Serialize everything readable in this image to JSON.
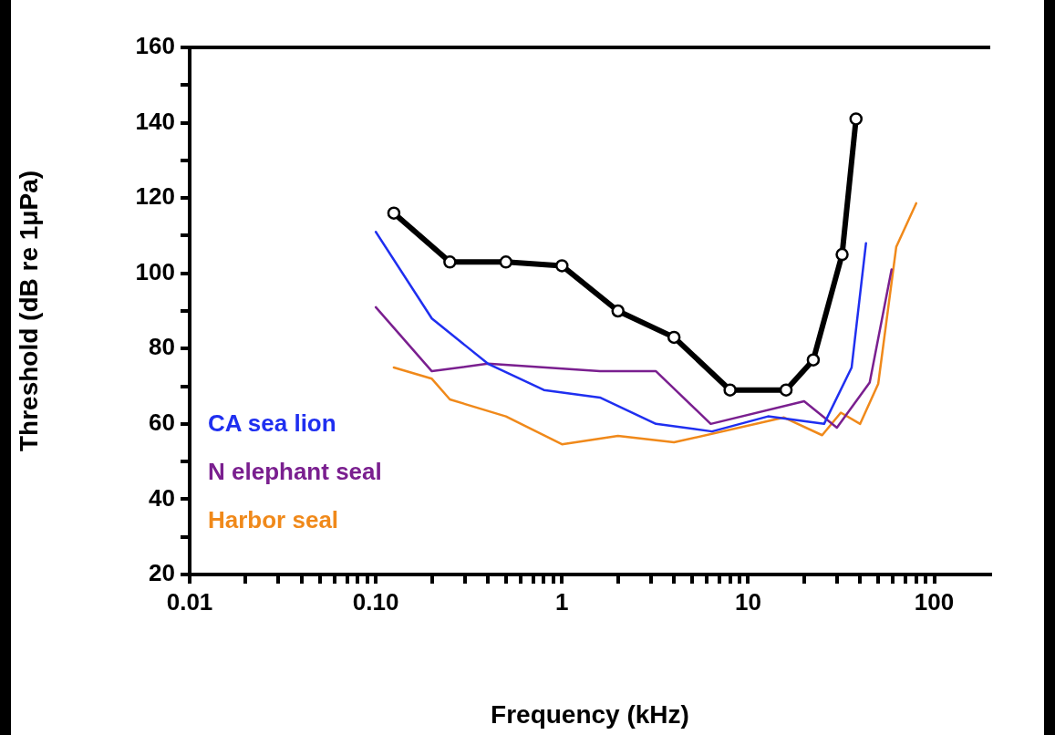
{
  "chart_data": {
    "type": "line",
    "xlabel": "Frequency (kHz)",
    "ylabel": "Threshold (dB re 1μPa)",
    "log": "x",
    "grid": false,
    "legend": "bottom left",
    "xlim": [
      0.01,
      200
    ],
    "ylim": [
      20,
      160
    ],
    "xticks": [
      {
        "value": 0.01,
        "label": "0.01"
      },
      {
        "value": 0.02,
        "label": null
      },
      {
        "value": 0.03,
        "label": null
      },
      {
        "value": 0.04,
        "label": null
      },
      {
        "value": 0.05,
        "label": null
      },
      {
        "value": 0.06,
        "label": null
      },
      {
        "value": 0.07,
        "label": null
      },
      {
        "value": 0.08,
        "label": null
      },
      {
        "value": 0.09,
        "label": null
      },
      {
        "value": 0.1,
        "label": "0.10"
      },
      {
        "value": 0.2,
        "label": null
      },
      {
        "value": 0.3,
        "label": null
      },
      {
        "value": 0.4,
        "label": null
      },
      {
        "value": 0.5,
        "label": null
      },
      {
        "value": 0.6,
        "label": null
      },
      {
        "value": 0.7,
        "label": null
      },
      {
        "value": 0.8,
        "label": null
      },
      {
        "value": 0.9,
        "label": null
      },
      1,
      {
        "value": 2,
        "label": null
      },
      {
        "value": 3,
        "label": null
      },
      {
        "value": 4,
        "label": null
      },
      {
        "value": 5,
        "label": null
      },
      {
        "value": 6,
        "label": null
      },
      {
        "value": 7,
        "label": null
      },
      {
        "value": 8,
        "label": null
      },
      {
        "value": 9,
        "label": null
      },
      10,
      {
        "value": 20,
        "label": null
      },
      {
        "value": 30,
        "label": null
      },
      {
        "value": 40,
        "label": null
      },
      {
        "value": 50,
        "label": null
      },
      {
        "value": 60,
        "label": null
      },
      {
        "value": 70,
        "label": null
      },
      {
        "value": 80,
        "label": null
      },
      {
        "value": 90,
        "label": null
      },
      100
    ],
    "yticks": [
      20,
      {
        "value": 30,
        "label": null
      },
      40,
      {
        "value": 50,
        "label": null
      },
      60,
      {
        "value": 70,
        "label": null
      },
      80,
      {
        "value": 90,
        "label": null
      },
      100,
      {
        "value": 110,
        "label": null
      },
      120,
      {
        "value": 130,
        "label": null
      },
      140,
      {
        "value": 150,
        "label": null
      },
      160
    ],
    "series": [
      {
        "color": "#000000",
        "marker": "circle",
        "x": [
          0.125,
          0.25,
          0.5,
          1,
          2,
          4,
          8,
          16,
          22.4,
          32,
          38
        ],
        "values": [
          116,
          103,
          103,
          102,
          90,
          83,
          69,
          69,
          77,
          105,
          141
        ]
      },
      {
        "name": "CA sea lion",
        "color": "#1f2ff0",
        "marker": "none",
        "x": [
          0.1,
          0.2,
          0.4,
          0.8,
          1.6,
          3.2,
          6.4,
          12.8,
          25.6,
          36,
          43
        ],
        "values": [
          111,
          88,
          76,
          69,
          67,
          60,
          58,
          62,
          60,
          75,
          108
        ]
      },
      {
        "name": "N elephant seal",
        "color": "#7a1f8f",
        "marker": "none",
        "x": [
          0.1,
          0.2,
          0.4,
          1.6,
          3.2,
          6.3,
          20,
          30,
          45,
          59
        ],
        "values": [
          91,
          74,
          76,
          74,
          74,
          60,
          66,
          59,
          71,
          101
        ]
      },
      {
        "name": "Harbor seal",
        "color": "#f0891a",
        "marker": "none",
        "x": [
          0.125,
          0.2,
          0.25,
          0.5,
          1,
          2,
          4,
          15.6,
          25,
          31.5,
          40,
          50,
          62.5,
          80
        ],
        "values": [
          75,
          72,
          66.5,
          62,
          54.6,
          56.8,
          55.1,
          61.7,
          57,
          63,
          60,
          70.6,
          107,
          118.6
        ]
      }
    ]
  }
}
